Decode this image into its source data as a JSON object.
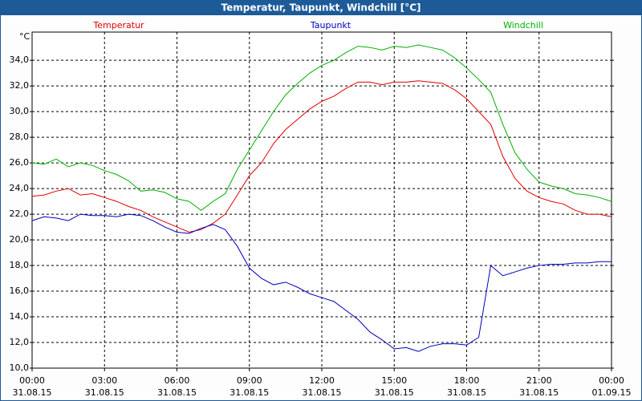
{
  "chart_data": {
    "type": "line",
    "title": "Temperatur, Taupunkt, Windchill [°C]",
    "yunit": "°C",
    "x": [
      0,
      0.5,
      1,
      1.5,
      2,
      2.5,
      3,
      3.5,
      4,
      4.5,
      5,
      5.5,
      6,
      6.5,
      7,
      7.5,
      8,
      8.5,
      9,
      9.5,
      10,
      10.5,
      11,
      11.5,
      12,
      12.5,
      13,
      13.5,
      14,
      14.5,
      15,
      15.5,
      16,
      16.5,
      17,
      17.5,
      18,
      18.5,
      19,
      19.5,
      20,
      20.5,
      21,
      21.5,
      22,
      22.5,
      23,
      23.5,
      24
    ],
    "series": [
      {
        "name": "Temperatur",
        "color": "#e00000",
        "values": [
          23.4,
          23.5,
          23.8,
          24.0,
          23.5,
          23.6,
          23.3,
          23.0,
          22.6,
          22.3,
          21.8,
          21.4,
          21.0,
          20.6,
          20.8,
          21.3,
          22.0,
          23.5,
          25.0,
          26.0,
          27.5,
          28.6,
          29.4,
          30.2,
          30.8,
          31.2,
          31.8,
          32.3,
          32.3,
          32.1,
          32.3,
          32.3,
          32.4,
          32.3,
          32.2,
          31.7,
          31.0,
          30.0,
          29.0,
          26.5,
          24.8,
          23.8,
          23.3,
          23.0,
          22.8,
          22.3,
          22.0,
          22.0,
          21.8
        ]
      },
      {
        "name": "Taupunkt",
        "color": "#0000c0",
        "values": [
          21.5,
          21.8,
          21.7,
          21.5,
          22.0,
          21.9,
          21.9,
          21.8,
          22.0,
          21.9,
          21.5,
          21.0,
          20.6,
          20.5,
          20.9,
          21.2,
          20.8,
          19.5,
          17.8,
          17.0,
          16.5,
          16.7,
          16.3,
          15.8,
          15.5,
          15.2,
          14.5,
          13.8,
          12.8,
          12.2,
          11.5,
          11.6,
          11.3,
          11.7,
          11.9,
          11.9,
          11.8,
          12.4,
          18.0,
          17.2,
          17.5,
          17.8,
          18.0,
          18.1,
          18.1,
          18.2,
          18.2,
          18.3,
          18.3
        ]
      },
      {
        "name": "Windchill",
        "color": "#00b000",
        "values": [
          26.0,
          25.9,
          26.3,
          25.7,
          26.0,
          25.8,
          25.4,
          25.1,
          24.6,
          23.8,
          23.9,
          23.7,
          23.2,
          23.0,
          22.3,
          23.0,
          23.6,
          25.5,
          27.0,
          28.5,
          30.0,
          31.3,
          32.2,
          33.0,
          33.6,
          34.0,
          34.6,
          35.1,
          35.0,
          34.8,
          35.1,
          35.0,
          35.2,
          35.0,
          34.8,
          34.2,
          33.4,
          32.5,
          31.5,
          29.0,
          26.8,
          25.5,
          24.5,
          24.2,
          24.0,
          23.6,
          23.5,
          23.3,
          23.0
        ]
      }
    ],
    "xlim": [
      0,
      24
    ],
    "xticks": [
      {
        "value": 0,
        "label": "00:00"
      },
      {
        "value": 3,
        "label": "03:00"
      },
      {
        "value": 6,
        "label": "06:00"
      },
      {
        "value": 9,
        "label": "09:00"
      },
      {
        "value": 12,
        "label": "12:00"
      },
      {
        "value": 15,
        "label": "15:00"
      },
      {
        "value": 18,
        "label": "18:00"
      },
      {
        "value": 21,
        "label": "21:00"
      },
      {
        "value": 24,
        "label": "00:00"
      }
    ],
    "xtick_dates": [
      "31.08.15",
      "31.08.15",
      "31.08.15",
      "31.08.15",
      "31.08.15",
      "31.08.15",
      "31.08.15",
      "31.08.15",
      "01.09.15"
    ],
    "ylim": [
      10,
      36.2
    ],
    "yticks": [
      {
        "value": 10,
        "label": "10,0"
      },
      {
        "value": 12,
        "label": "12,0"
      },
      {
        "value": 14,
        "label": "14,0"
      },
      {
        "value": 16,
        "label": "16,0"
      },
      {
        "value": 18,
        "label": "18,0"
      },
      {
        "value": 20,
        "label": "20,0"
      },
      {
        "value": 22,
        "label": "22,0"
      },
      {
        "value": 24,
        "label": "24,0"
      },
      {
        "value": 26,
        "label": "26,0"
      },
      {
        "value": 28,
        "label": "28,0"
      },
      {
        "value": 30,
        "label": "30,0"
      },
      {
        "value": 32,
        "label": "32,0"
      },
      {
        "value": 34,
        "label": "34,0"
      }
    ],
    "grid": true,
    "legend": "top"
  }
}
